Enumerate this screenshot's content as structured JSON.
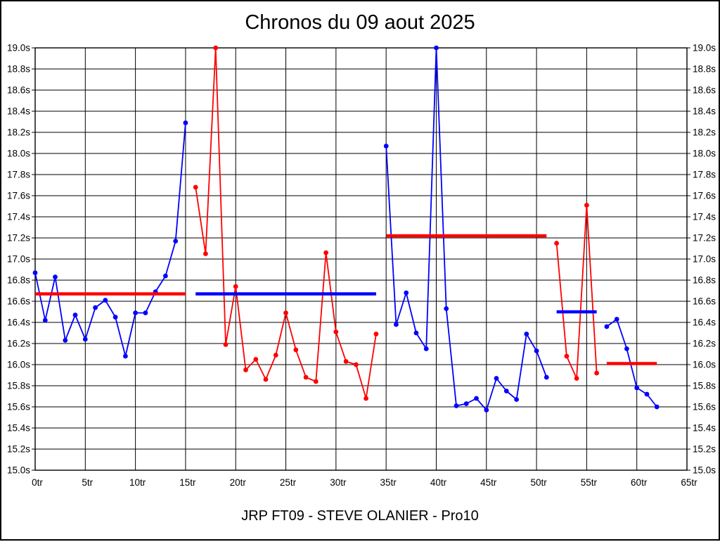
{
  "title": "Chronos du 09 aout 2025",
  "footer": "JRP FT09 - STEVE OLANIER - Pro10",
  "colors": {
    "blue_series": "#0000ff",
    "red_series": "#ff0000",
    "grid": "#000000",
    "text": "#000000",
    "background": "#ffffff"
  },
  "chart_data": {
    "type": "line",
    "title": "Chronos du 09 aout 2025",
    "footer": "JRP FT09 - STEVE OLANIER - Pro10",
    "xlabel": "",
    "ylabel": "",
    "x_unit": "tr",
    "y_unit": "s",
    "xlim": [
      0,
      65
    ],
    "ylim": [
      15.0,
      19.0
    ],
    "x_tick_step": 5,
    "y_tick_step": 0.2,
    "grid": true,
    "legend_position": "none",
    "x_tick_labels": [
      "0tr",
      "5tr",
      "10tr",
      "15tr",
      "20tr",
      "25tr",
      "30tr",
      "35tr",
      "40tr",
      "45tr",
      "50tr",
      "55tr",
      "60tr",
      "65tr"
    ],
    "y_tick_labels_top_down": [
      "19.0s",
      "18.8s",
      "18.6s",
      "18.4s",
      "18.2s",
      "18.0s",
      "17.8s",
      "17.6s",
      "17.4s",
      "17.2s",
      "17.0s",
      "16.8s",
      "16.6s",
      "16.4s",
      "16.2s",
      "16.0s",
      "15.8s",
      "15.6s",
      "15.4s",
      "15.2s",
      "15.0s"
    ],
    "series": [
      {
        "name": "stint-1-blue",
        "color": "#0000ff",
        "start_x": 0,
        "values": [
          16.87,
          16.42,
          16.83,
          16.23,
          16.47,
          16.24,
          16.54,
          16.61,
          16.45,
          16.08,
          16.49,
          16.49,
          16.69,
          16.84,
          17.17,
          18.29
        ]
      },
      {
        "name": "stint-2-red",
        "color": "#ff0000",
        "start_x": 16,
        "values": [
          17.68,
          17.05,
          19.0,
          16.19,
          16.74,
          15.95,
          16.05,
          15.86,
          16.09,
          16.49,
          16.14,
          15.88,
          15.84,
          17.06,
          16.31,
          16.03,
          16.0,
          15.68,
          16.29
        ]
      },
      {
        "name": "stint-3-blue",
        "color": "#0000ff",
        "start_x": 35,
        "values": [
          18.07,
          16.38,
          16.68,
          16.3,
          16.15,
          19.0,
          16.53,
          15.61,
          15.63,
          15.68,
          15.57,
          15.87,
          15.75,
          15.67,
          16.29,
          16.13,
          15.88
        ]
      },
      {
        "name": "stint-4-red",
        "color": "#ff0000",
        "start_x": 52,
        "values": [
          17.15,
          16.08,
          15.87,
          17.51,
          15.92
        ]
      },
      {
        "name": "stint-5-blue",
        "color": "#0000ff",
        "start_x": 57,
        "values": [
          16.36,
          16.43,
          16.15,
          15.78,
          15.72,
          15.6
        ]
      }
    ],
    "average_lines": [
      {
        "name": "avg-line-1",
        "color": "#ff0000",
        "value": 16.67,
        "from_x": 0,
        "to_x": 15
      },
      {
        "name": "avg-line-2",
        "color": "#0000ff",
        "value": 16.67,
        "from_x": 16,
        "to_x": 34
      },
      {
        "name": "avg-line-3",
        "color": "#ff0000",
        "value": 17.22,
        "from_x": 35,
        "to_x": 51
      },
      {
        "name": "avg-line-4",
        "color": "#0000ff",
        "value": 16.5,
        "from_x": 52,
        "to_x": 56
      },
      {
        "name": "avg-line-5",
        "color": "#ff0000",
        "value": 16.01,
        "from_x": 57,
        "to_x": 62
      }
    ]
  }
}
